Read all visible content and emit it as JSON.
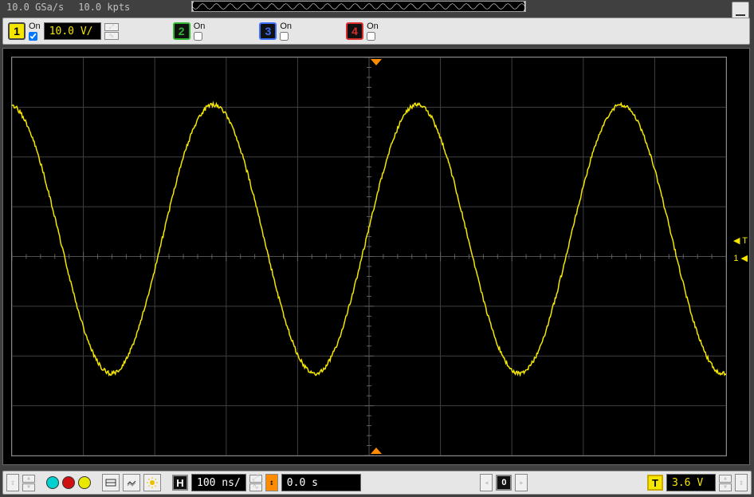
{
  "colors": {
    "panel_bg": "#404040",
    "bar_bg": "#e6e6e6",
    "display_bg": "#000000",
    "grid_major": "#404040",
    "grid_center": "#505050",
    "ch1": "#f5e600",
    "ch2": "#2fb52f",
    "ch3": "#3a6fff",
    "ch4": "#d83030",
    "trigger_box": "#c9a800",
    "text_light": "#c0c0c0"
  },
  "top": {
    "sample_rate": "10.0 GSa/s",
    "record_length": "10.0 kpts"
  },
  "channels": [
    {
      "n": "1",
      "on_label": "On",
      "checked": true,
      "scale": "10.0 V/",
      "color": "#f5e600",
      "bg": "#f5e600",
      "text_on_box": "#000"
    },
    {
      "n": "2",
      "on_label": "On",
      "checked": false,
      "scale": "",
      "color": "#2fb52f",
      "bg": "#111",
      "text_on_box": "#2fb52f"
    },
    {
      "n": "3",
      "on_label": "On",
      "checked": false,
      "scale": "",
      "color": "#3a6fff",
      "bg": "#111",
      "text_on_box": "#3a6fff"
    },
    {
      "n": "4",
      "on_label": "On",
      "checked": false,
      "scale": "",
      "color": "#d83030",
      "bg": "#111",
      "text_on_box": "#d83030"
    }
  ],
  "waveform": {
    "type": "line",
    "color": "#f5e600",
    "periods_visible": 3.5,
    "amplitude_divs": 2.7,
    "offset_divs": 0.35,
    "phase_deg": 95,
    "noise_divs": 0.04,
    "grid_h_divs": 10,
    "grid_v_divs": 8,
    "line_width": 1.5
  },
  "markers": {
    "trigger_time_label": "",
    "trigger_level_label": "T",
    "ch1_ground_label": "1"
  },
  "bottom": {
    "horiz_mode_letter": "H",
    "timebase": "100 ns/",
    "delay": "0.0 s",
    "delay_box_letter": "0",
    "trigger_box_letter": "T",
    "trigger_level": "3.6 V",
    "trigger_color": "#f5e600"
  }
}
